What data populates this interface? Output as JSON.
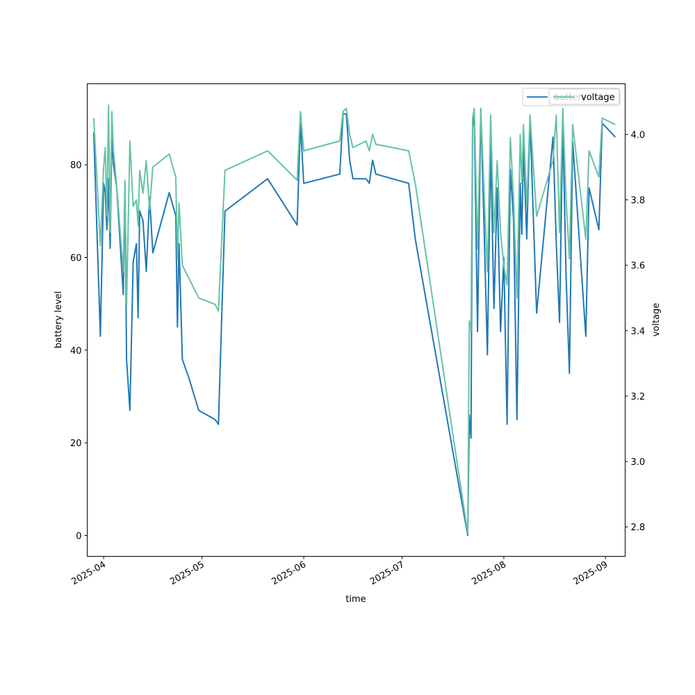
{
  "chart_data": {
    "type": "line",
    "xlabel": "time",
    "ylabel": "battery level",
    "y2label": "voltage",
    "xlim": [
      "2025-03-27",
      "2025-09-07"
    ],
    "ylim": [
      -4.5,
      97.5
    ],
    "y2lim": [
      2.71,
      4.155
    ],
    "x_ticks": [
      "2025-04",
      "2025-05",
      "2025-06",
      "2025-07",
      "2025-08",
      "2025-09"
    ],
    "y_ticks": [
      0,
      20,
      40,
      60,
      80
    ],
    "y2_ticks": [
      "2.8",
      "3.0",
      "3.2",
      "3.4",
      "3.6",
      "3.8",
      "4.0"
    ],
    "legend": [
      "battery",
      "voltage"
    ],
    "legend_position": "top-right",
    "grid": false,
    "colors": {
      "battery": "#1f77b4",
      "voltage": "#66c2a5"
    },
    "series": [
      {
        "name": "battery",
        "axis": "left",
        "points": [
          [
            "2025-03-29",
            87
          ],
          [
            "2025-03-31",
            43
          ],
          [
            "2025-04-01",
            76
          ],
          [
            "2025-04-01T12:00",
            74
          ],
          [
            "2025-04-02",
            66
          ],
          [
            "2025-04-02T12:00",
            77
          ],
          [
            "2025-04-03",
            62
          ],
          [
            "2025-04-03T12:00",
            86
          ],
          [
            "2025-04-04",
            80
          ],
          [
            "2025-04-05",
            75
          ],
          [
            "2025-04-07",
            52
          ],
          [
            "2025-04-07T12:00",
            76
          ],
          [
            "2025-04-08",
            38
          ],
          [
            "2025-04-09",
            27
          ],
          [
            "2025-04-10",
            59
          ],
          [
            "2025-04-11",
            63
          ],
          [
            "2025-04-11T12:00",
            47
          ],
          [
            "2025-04-12",
            70
          ],
          [
            "2025-04-13",
            68
          ],
          [
            "2025-04-14",
            57
          ],
          [
            "2025-04-15",
            73
          ],
          [
            "2025-04-16",
            61
          ],
          [
            "2025-04-21",
            74
          ],
          [
            "2025-04-23",
            69
          ],
          [
            "2025-04-23T12:00",
            45
          ],
          [
            "2025-04-24",
            63
          ],
          [
            "2025-04-25",
            38
          ],
          [
            "2025-04-27",
            34
          ],
          [
            "2025-04-30",
            27
          ],
          [
            "2025-05-05",
            25
          ],
          [
            "2025-05-06",
            24
          ],
          [
            "2025-05-08",
            70
          ],
          [
            "2025-05-21",
            77
          ],
          [
            "2025-05-30",
            67
          ],
          [
            "2025-05-31",
            89
          ],
          [
            "2025-06-01",
            76
          ],
          [
            "2025-06-12",
            78
          ],
          [
            "2025-06-13",
            91
          ],
          [
            "2025-06-14",
            91
          ],
          [
            "2025-06-15",
            81
          ],
          [
            "2025-06-16",
            77
          ],
          [
            "2025-06-20",
            77
          ],
          [
            "2025-06-21",
            76
          ],
          [
            "2025-06-22",
            81
          ],
          [
            "2025-06-23",
            78
          ],
          [
            "2025-07-03",
            76
          ],
          [
            "2025-07-05",
            64
          ],
          [
            "2025-07-21",
            0
          ],
          [
            "2025-07-21T12:00",
            26
          ],
          [
            "2025-07-22",
            21
          ],
          [
            "2025-07-22T12:00",
            88
          ],
          [
            "2025-07-23",
            91
          ],
          [
            "2025-07-24",
            44
          ],
          [
            "2025-07-25",
            92
          ],
          [
            "2025-07-26",
            66
          ],
          [
            "2025-07-27",
            39
          ],
          [
            "2025-07-28",
            84
          ],
          [
            "2025-07-29",
            49
          ],
          [
            "2025-07-30",
            75
          ],
          [
            "2025-07-31",
            44
          ],
          [
            "2025-08-01",
            60
          ],
          [
            "2025-08-02",
            24
          ],
          [
            "2025-08-03",
            79
          ],
          [
            "2025-08-04",
            68
          ],
          [
            "2025-08-05",
            25
          ],
          [
            "2025-08-06",
            76
          ],
          [
            "2025-08-06T12:00",
            65
          ],
          [
            "2025-08-07",
            84
          ],
          [
            "2025-08-08",
            64
          ],
          [
            "2025-08-09",
            90
          ],
          [
            "2025-08-11",
            48
          ],
          [
            "2025-08-16",
            86
          ],
          [
            "2025-08-17",
            63
          ],
          [
            "2025-08-18",
            46
          ],
          [
            "2025-08-19",
            89
          ],
          [
            "2025-08-20",
            56
          ],
          [
            "2025-08-21",
            35
          ],
          [
            "2025-08-22",
            85
          ],
          [
            "2025-08-26",
            43
          ],
          [
            "2025-08-27",
            75
          ],
          [
            "2025-08-30",
            66
          ],
          [
            "2025-08-31",
            89
          ],
          [
            "2025-09-04",
            86
          ]
        ]
      },
      {
        "name": "voltage",
        "axis": "right",
        "points": [
          [
            "2025-03-29",
            4.05
          ],
          [
            "2025-03-31",
            3.66
          ],
          [
            "2025-04-01",
            3.9
          ],
          [
            "2025-04-01T12:00",
            3.96
          ],
          [
            "2025-04-02",
            3.75
          ],
          [
            "2025-04-02T12:00",
            4.09
          ],
          [
            "2025-04-03",
            3.7
          ],
          [
            "2025-04-03T12:00",
            4.07
          ],
          [
            "2025-04-04",
            3.95
          ],
          [
            "2025-04-05",
            3.84
          ],
          [
            "2025-04-07",
            3.58
          ],
          [
            "2025-04-07T12:00",
            3.86
          ],
          [
            "2025-04-08",
            3.48
          ],
          [
            "2025-04-09",
            3.98
          ],
          [
            "2025-04-10",
            3.78
          ],
          [
            "2025-04-11",
            3.8
          ],
          [
            "2025-04-11T12:00",
            3.72
          ],
          [
            "2025-04-12",
            3.89
          ],
          [
            "2025-04-13",
            3.82
          ],
          [
            "2025-04-14",
            3.92
          ],
          [
            "2025-04-15",
            3.77
          ],
          [
            "2025-04-16",
            3.9
          ],
          [
            "2025-04-21",
            3.94
          ],
          [
            "2025-04-23",
            3.87
          ],
          [
            "2025-04-23T12:00",
            3.62
          ],
          [
            "2025-04-24",
            3.79
          ],
          [
            "2025-04-25",
            3.6
          ],
          [
            "2025-04-27",
            3.56
          ],
          [
            "2025-04-30",
            3.5
          ],
          [
            "2025-05-05",
            3.48
          ],
          [
            "2025-05-06",
            3.46
          ],
          [
            "2025-05-08",
            3.89
          ],
          [
            "2025-05-21",
            3.95
          ],
          [
            "2025-05-30",
            3.86
          ],
          [
            "2025-05-31",
            4.07
          ],
          [
            "2025-06-01",
            3.95
          ],
          [
            "2025-06-12",
            3.98
          ],
          [
            "2025-06-13",
            4.07
          ],
          [
            "2025-06-14",
            4.08
          ],
          [
            "2025-06-15",
            4.0
          ],
          [
            "2025-06-16",
            3.96
          ],
          [
            "2025-06-20",
            3.98
          ],
          [
            "2025-06-21",
            3.95
          ],
          [
            "2025-06-22",
            4.0
          ],
          [
            "2025-06-23",
            3.97
          ],
          [
            "2025-07-03",
            3.95
          ],
          [
            "2025-07-05",
            3.85
          ],
          [
            "2025-07-21",
            2.78
          ],
          [
            "2025-07-21T12:00",
            3.43
          ],
          [
            "2025-07-22",
            3.4
          ],
          [
            "2025-07-22T12:00",
            4.05
          ],
          [
            "2025-07-23",
            4.08
          ],
          [
            "2025-07-24",
            3.65
          ],
          [
            "2025-07-25",
            4.08
          ],
          [
            "2025-07-26",
            3.82
          ],
          [
            "2025-07-27",
            3.58
          ],
          [
            "2025-07-28",
            4.06
          ],
          [
            "2025-07-29",
            3.7
          ],
          [
            "2025-07-30",
            3.92
          ],
          [
            "2025-07-31",
            3.7
          ],
          [
            "2025-08-01",
            3.6
          ],
          [
            "2025-08-02",
            3.54
          ],
          [
            "2025-08-03",
            3.99
          ],
          [
            "2025-08-04",
            3.8
          ],
          [
            "2025-08-05",
            3.5
          ],
          [
            "2025-08-06",
            4.0
          ],
          [
            "2025-08-06T12:00",
            3.85
          ],
          [
            "2025-08-07",
            4.03
          ],
          [
            "2025-08-08",
            3.78
          ],
          [
            "2025-08-09",
            4.06
          ],
          [
            "2025-08-11",
            3.75
          ],
          [
            "2025-08-16",
            3.92
          ],
          [
            "2025-08-17",
            4.06
          ],
          [
            "2025-08-18",
            3.7
          ],
          [
            "2025-08-19",
            4.08
          ],
          [
            "2025-08-20",
            3.8
          ],
          [
            "2025-08-21",
            3.62
          ],
          [
            "2025-08-22",
            4.03
          ],
          [
            "2025-08-26",
            3.68
          ],
          [
            "2025-08-27",
            3.95
          ],
          [
            "2025-08-30",
            3.87
          ],
          [
            "2025-08-31",
            4.05
          ],
          [
            "2025-09-04",
            4.03
          ]
        ]
      }
    ]
  }
}
